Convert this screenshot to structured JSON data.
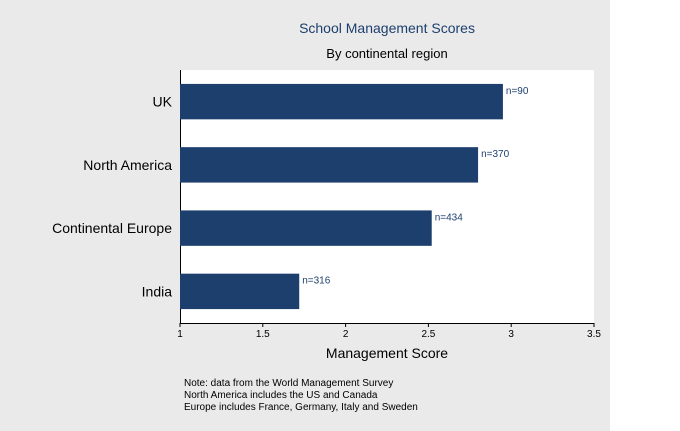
{
  "chart_data": {
    "type": "bar",
    "orientation": "horizontal",
    "title": "School Management Scores",
    "subtitle": "By continental region",
    "xlabel": "Management Score",
    "ylabel": "",
    "categories": [
      "UK",
      "North America",
      "Continental Europe",
      "India"
    ],
    "values": [
      2.95,
      2.8,
      2.52,
      1.72
    ],
    "bar_labels": [
      "n=90",
      "n=370",
      "n=434",
      "n=316"
    ],
    "xlim": [
      1,
      3.5
    ],
    "xticks": [
      1,
      1.5,
      2,
      2.5,
      3,
      3.5
    ],
    "xtick_labels": [
      "1",
      "1.5",
      "2",
      "2.5",
      "3",
      "3.5"
    ],
    "bar_color": "#1c3f6e",
    "grid": false,
    "notes": [
      "Note: data from  the World Management Survey",
      "North America includes the US and Canada",
      "Europe includes  France, Germany, Italy and Sweden"
    ]
  },
  "colors": {
    "panel_background": "#eaeaea",
    "plot_background": "#ffffff",
    "title_color": "#1c3f6e"
  }
}
